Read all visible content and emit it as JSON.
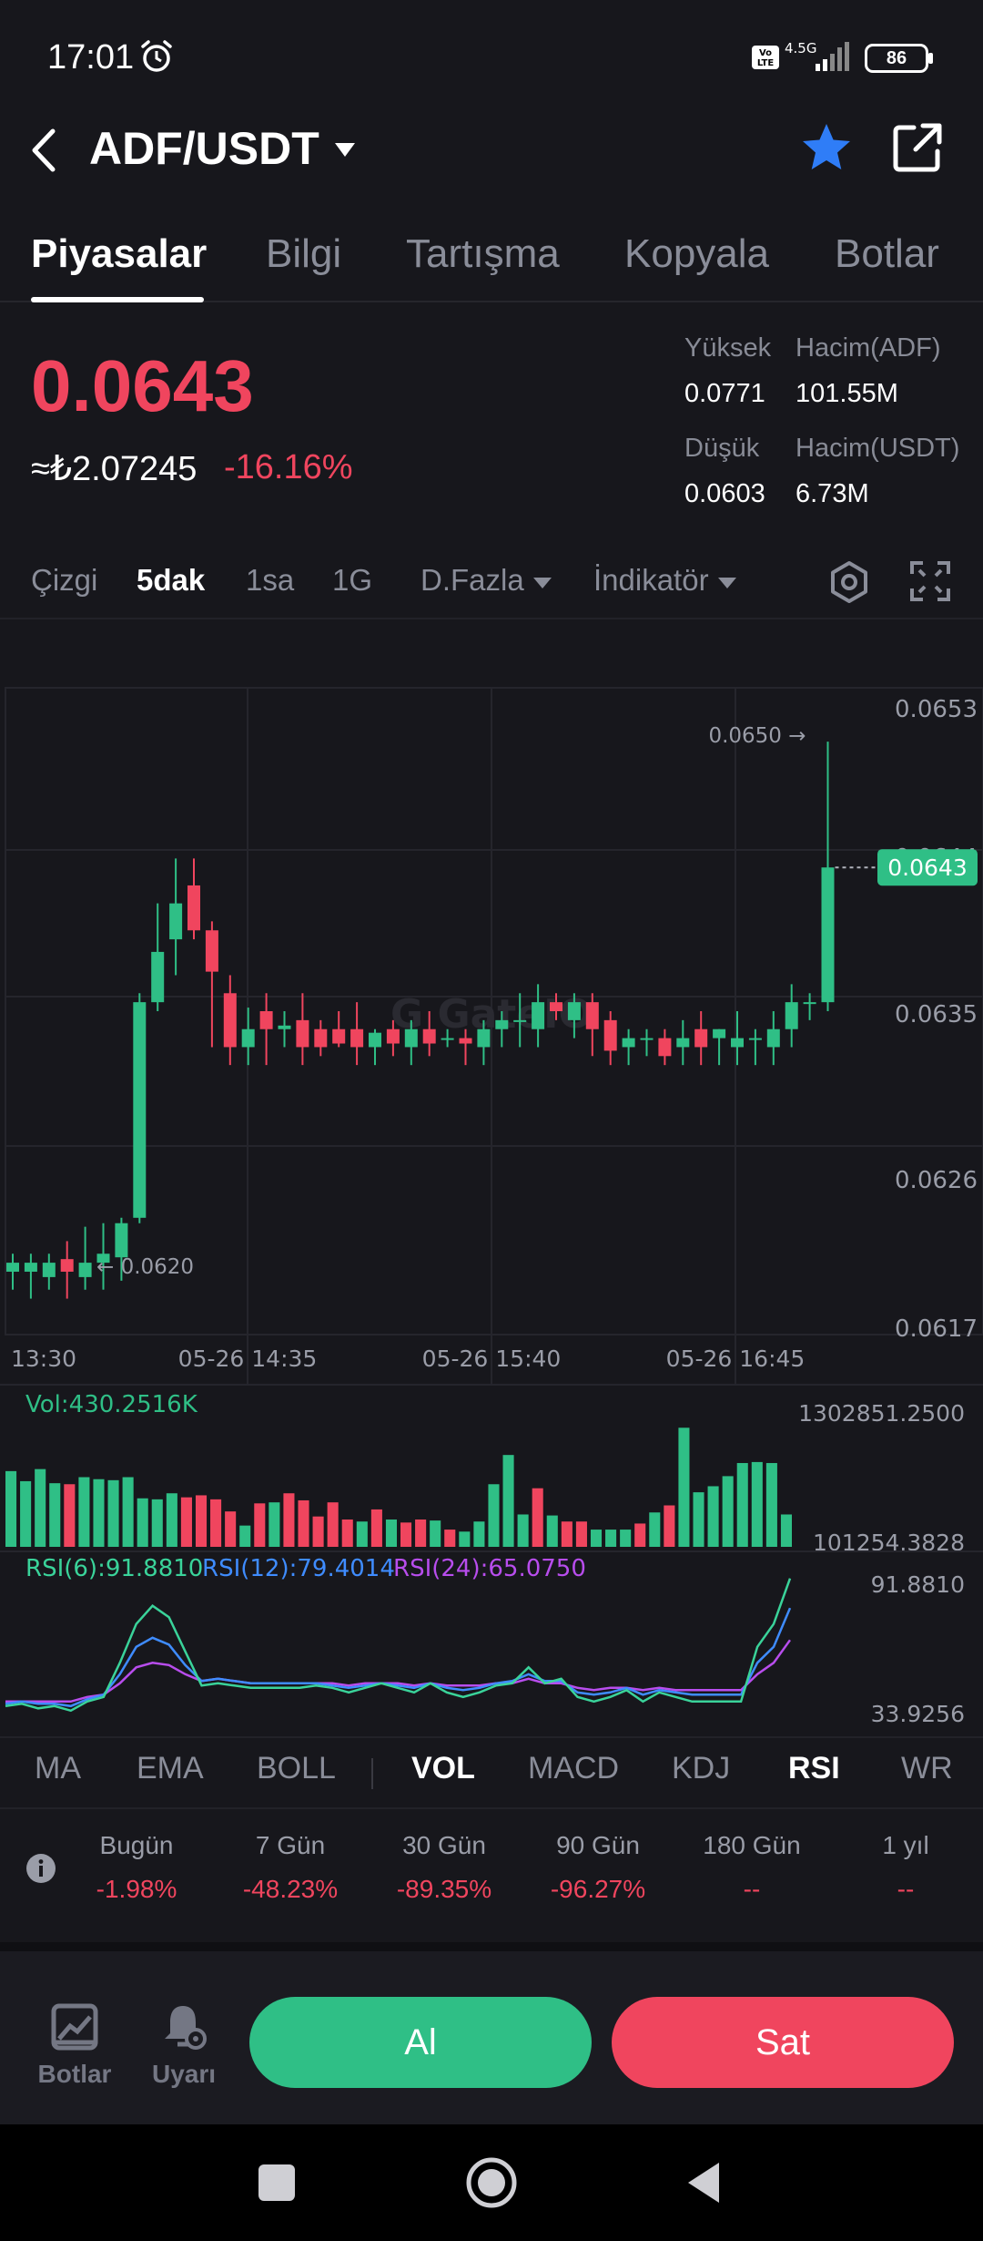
{
  "status_bar": {
    "time": "17:01",
    "network": "4.5G",
    "volte": "Vo LTE",
    "battery": "86"
  },
  "header": {
    "pair": "ADF/USDT"
  },
  "tabs": [
    "Piyasalar",
    "Bilgi",
    "Tartışma",
    "Kopyala",
    "Botlar"
  ],
  "ticker": {
    "price": "0.0643",
    "fiat": "≈₺2.07245",
    "change": "-16.16%",
    "high_label": "Yüksek",
    "high": "0.0771",
    "low_label": "Düşük",
    "low": "0.0603",
    "vol_base_label": "Hacim(ADF)",
    "vol_base": "101.55M",
    "vol_quote_label": "Hacim(USDT)",
    "vol_quote": "6.73M"
  },
  "periods": [
    "Çizgi",
    "5dak",
    "1sa",
    "1G",
    "D.Fazla",
    "İndikatör"
  ],
  "active_period": "5dak",
  "chart_data": {
    "type": "candlestick",
    "interval": "5dak",
    "price_axis_labels": [
      "0.0653",
      "0.0644",
      "0.0635",
      "0.0626",
      "0.0617"
    ],
    "time_axis_labels": [
      "13:30",
      "05-26 14:35",
      "05-26 15:40",
      "05-26 16:45"
    ],
    "ylim": [
      0.0617,
      0.0653
    ],
    "current_price": "0.0643",
    "high_marker": "0.0650 →",
    "low_marker": "← 0.0620",
    "candles": [
      {
        "o": 0.06205,
        "h": 0.06215,
        "l": 0.06195,
        "c": 0.0621
      },
      {
        "o": 0.06205,
        "h": 0.06215,
        "l": 0.0619,
        "c": 0.0621
      },
      {
        "o": 0.06202,
        "h": 0.06215,
        "l": 0.06195,
        "c": 0.0621
      },
      {
        "o": 0.06212,
        "h": 0.06222,
        "l": 0.0619,
        "c": 0.06205
      },
      {
        "o": 0.06202,
        "h": 0.0623,
        "l": 0.06195,
        "c": 0.0621
      },
      {
        "o": 0.0621,
        "h": 0.06232,
        "l": 0.06195,
        "c": 0.06215
      },
      {
        "o": 0.06213,
        "h": 0.06235,
        "l": 0.062,
        "c": 0.06232
      },
      {
        "o": 0.06235,
        "h": 0.0636,
        "l": 0.06232,
        "c": 0.06355
      },
      {
        "o": 0.06355,
        "h": 0.0641,
        "l": 0.0635,
        "c": 0.06383
      },
      {
        "o": 0.0639,
        "h": 0.06435,
        "l": 0.0637,
        "c": 0.0641
      },
      {
        "o": 0.0642,
        "h": 0.06435,
        "l": 0.0639,
        "c": 0.06395
      },
      {
        "o": 0.06395,
        "h": 0.064,
        "l": 0.0633,
        "c": 0.06372
      },
      {
        "o": 0.0636,
        "h": 0.0637,
        "l": 0.0632,
        "c": 0.0633
      },
      {
        "o": 0.0633,
        "h": 0.06352,
        "l": 0.0632,
        "c": 0.0634
      },
      {
        "o": 0.0635,
        "h": 0.0636,
        "l": 0.0632,
        "c": 0.0634
      },
      {
        "o": 0.0634,
        "h": 0.0635,
        "l": 0.0633,
        "c": 0.06342
      },
      {
        "o": 0.06345,
        "h": 0.0636,
        "l": 0.0632,
        "c": 0.0633
      },
      {
        "o": 0.0634,
        "h": 0.06345,
        "l": 0.06325,
        "c": 0.0633
      },
      {
        "o": 0.0634,
        "h": 0.0635,
        "l": 0.0633,
        "c": 0.06332
      },
      {
        "o": 0.0634,
        "h": 0.06355,
        "l": 0.0632,
        "c": 0.0633
      },
      {
        "o": 0.0633,
        "h": 0.0634,
        "l": 0.0632,
        "c": 0.06338
      },
      {
        "o": 0.0634,
        "h": 0.06345,
        "l": 0.06325,
        "c": 0.06332
      },
      {
        "o": 0.0633,
        "h": 0.06345,
        "l": 0.0632,
        "c": 0.0634
      },
      {
        "o": 0.0634,
        "h": 0.0635,
        "l": 0.06325,
        "c": 0.06332
      },
      {
        "o": 0.06335,
        "h": 0.0634,
        "l": 0.0633,
        "c": 0.06335
      },
      {
        "o": 0.06335,
        "h": 0.0634,
        "l": 0.0632,
        "c": 0.06332
      },
      {
        "o": 0.0633,
        "h": 0.06345,
        "l": 0.0632,
        "c": 0.0634
      },
      {
        "o": 0.0634,
        "h": 0.0635,
        "l": 0.0633,
        "c": 0.06345
      },
      {
        "o": 0.06345,
        "h": 0.0636,
        "l": 0.0633,
        "c": 0.06345
      },
      {
        "o": 0.0634,
        "h": 0.06365,
        "l": 0.0633,
        "c": 0.06355
      },
      {
        "o": 0.06355,
        "h": 0.0636,
        "l": 0.06345,
        "c": 0.0635
      },
      {
        "o": 0.06345,
        "h": 0.0636,
        "l": 0.06335,
        "c": 0.06355
      },
      {
        "o": 0.06355,
        "h": 0.0636,
        "l": 0.06325,
        "c": 0.0634
      },
      {
        "o": 0.06345,
        "h": 0.0635,
        "l": 0.0632,
        "c": 0.06328
      },
      {
        "o": 0.0633,
        "h": 0.0634,
        "l": 0.0632,
        "c": 0.06335
      },
      {
        "o": 0.06335,
        "h": 0.0634,
        "l": 0.06325,
        "c": 0.06335
      },
      {
        "o": 0.06335,
        "h": 0.0634,
        "l": 0.0632,
        "c": 0.06325
      },
      {
        "o": 0.0633,
        "h": 0.06345,
        "l": 0.0632,
        "c": 0.06335
      },
      {
        "o": 0.0634,
        "h": 0.0635,
        "l": 0.0632,
        "c": 0.0633
      },
      {
        "o": 0.06335,
        "h": 0.0634,
        "l": 0.0632,
        "c": 0.0634
      },
      {
        "o": 0.0633,
        "h": 0.0635,
        "l": 0.0632,
        "c": 0.06335
      },
      {
        "o": 0.06335,
        "h": 0.0634,
        "l": 0.0632,
        "c": 0.06335
      },
      {
        "o": 0.0633,
        "h": 0.0635,
        "l": 0.0632,
        "c": 0.0634
      },
      {
        "o": 0.0634,
        "h": 0.06365,
        "l": 0.0633,
        "c": 0.06355
      },
      {
        "o": 0.06355,
        "h": 0.0636,
        "l": 0.06345,
        "c": 0.06355
      },
      {
        "o": 0.06355,
        "h": 0.065,
        "l": 0.0635,
        "c": 0.0643
      }
    ],
    "volume": {
      "label": "Vol:430.2516K",
      "axis_labels": [
        "1302851.2500",
        "101254.3828"
      ],
      "ylim": [
        101254.3828,
        1302851.25
      ],
      "values": [
        780000,
        680000,
        800000,
        660000,
        650000,
        720000,
        700000,
        690000,
        720000,
        510000,
        500000,
        560000,
        520000,
        540000,
        500000,
        380000,
        240000,
        460000,
        470000,
        560000,
        490000,
        330000,
        470000,
        300000,
        280000,
        400000,
        300000,
        270000,
        300000,
        290000,
        200000,
        180000,
        280000,
        650000,
        940000,
        350000,
        610000,
        340000,
        280000,
        280000,
        200000,
        200000,
        200000,
        260000,
        370000,
        440000,
        1210000,
        570000,
        630000,
        730000,
        860000,
        870000,
        860000,
        350000
      ]
    },
    "rsi": {
      "label6": "RSI(6):91.8810",
      "label12": "RSI(12):79.4014",
      "label24": "RSI(24):65.0750",
      "colors": [
        "#3ad39a",
        "#3f8cff",
        "#b84ded"
      ],
      "axis_labels": [
        "91.8810",
        "33.9256"
      ],
      "ylim": [
        33.9256,
        91.881
      ],
      "rsi6": [
        36,
        37,
        35,
        36,
        34,
        38,
        40,
        55,
        72,
        80,
        75,
        60,
        45,
        46,
        45,
        44,
        44,
        44,
        44,
        45,
        44,
        42,
        44,
        46,
        44,
        42,
        46,
        42,
        40,
        42,
        45,
        46,
        53,
        46,
        48,
        40,
        38,
        40,
        43,
        38,
        42,
        40,
        38,
        38,
        38,
        38,
        62,
        72,
        92
      ],
      "rsi12": [
        37,
        38,
        37,
        37,
        36,
        39,
        41,
        50,
        62,
        66,
        63,
        54,
        47,
        48,
        47,
        46,
        46,
        46,
        46,
        46,
        45,
        44,
        45,
        46,
        45,
        44,
        46,
        44,
        43,
        44,
        46,
        47,
        50,
        47,
        47,
        42,
        41,
        42,
        44,
        41,
        43,
        42,
        41,
        41,
        41,
        41,
        55,
        62,
        79
      ],
      "rsi24": [
        38,
        38,
        38,
        38,
        38,
        40,
        41,
        46,
        53,
        55,
        54,
        50,
        47,
        48,
        47,
        46,
        46,
        46,
        46,
        46,
        46,
        45,
        46,
        46,
        46,
        45,
        46,
        45,
        45,
        45,
        46,
        46,
        48,
        46,
        46,
        44,
        43,
        44,
        44,
        43,
        44,
        43,
        43,
        43,
        43,
        43,
        50,
        55,
        65
      ]
    }
  },
  "indicator_tabs": [
    "MA",
    "EMA",
    "BOLL",
    "VOL",
    "MACD",
    "KDJ",
    "RSI",
    "WR"
  ],
  "performance": [
    {
      "label": "Bugün",
      "value": "-1.98%"
    },
    {
      "label": "7 Gün",
      "value": "-48.23%"
    },
    {
      "label": "30 Gün",
      "value": "-89.35%"
    },
    {
      "label": "90 Gün",
      "value": "-96.27%"
    },
    {
      "label": "180 Gün",
      "value": "--"
    },
    {
      "label": "1 yıl",
      "value": "--"
    }
  ],
  "bottom_bar": {
    "bots": "Botlar",
    "alerts": "Uyarı",
    "buy": "Al",
    "sell": "Sat"
  },
  "colors": {
    "up": "#2fbf86",
    "down": "#f0455e",
    "background": "#17171c"
  }
}
